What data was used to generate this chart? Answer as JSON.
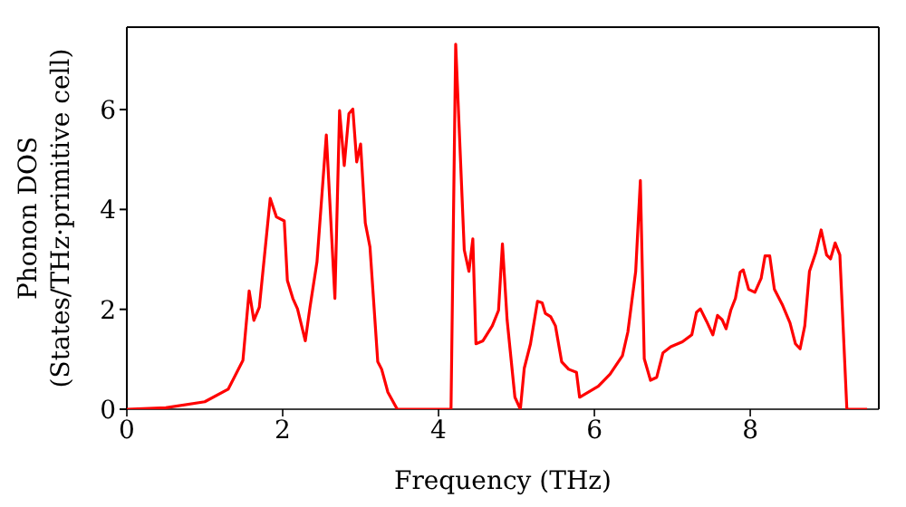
{
  "chart_data": {
    "type": "line",
    "xlabel": "Frequency (THz)",
    "ylabel": "Phonon DOS\n(States/THz·primitive cell)",
    "x": [
      0,
      0.5,
      1.0,
      1.3,
      1.49,
      1.57,
      1.63,
      1.7,
      1.84,
      1.92,
      2.02,
      2.06,
      2.13,
      2.19,
      2.29,
      2.35,
      2.44,
      2.56,
      2.67,
      2.73,
      2.79,
      2.85,
      2.9,
      2.95,
      3.0,
      3.06,
      3.12,
      3.22,
      3.27,
      3.35,
      3.47,
      4.16,
      4.22,
      4.33,
      4.39,
      4.44,
      4.48,
      4.57,
      4.69,
      4.77,
      4.82,
      4.88,
      4.98,
      5.05,
      5.1,
      5.18,
      5.27,
      5.33,
      5.37,
      5.44,
      5.5,
      5.58,
      5.67,
      5.77,
      5.81,
      6.05,
      6.2,
      6.36,
      6.43,
      6.49,
      6.53,
      6.59,
      6.64,
      6.72,
      6.8,
      6.88,
      6.98,
      7.13,
      7.25,
      7.31,
      7.36,
      7.44,
      7.52,
      7.58,
      7.64,
      7.69,
      7.75,
      7.81,
      7.87,
      7.91,
      7.98,
      8.06,
      8.14,
      8.19,
      8.25,
      8.31,
      8.41,
      8.51,
      8.58,
      8.64,
      8.7,
      8.76,
      8.84,
      8.91,
      8.98,
      9.03,
      9.09,
      9.15,
      9.24,
      9.5
    ],
    "series": [
      {
        "color": "#ff0000",
        "values": [
          0,
          0.03,
          0.15,
          0.4,
          0.98,
          2.37,
          1.78,
          2.04,
          4.22,
          3.85,
          3.77,
          2.58,
          2.22,
          2.01,
          1.37,
          2.04,
          2.95,
          5.49,
          2.22,
          5.98,
          4.88,
          5.92,
          6.01,
          4.95,
          5.31,
          3.73,
          3.25,
          0.95,
          0.8,
          0.34,
          0,
          0,
          7.31,
          3.19,
          2.76,
          3.41,
          1.31,
          1.37,
          1.67,
          1.98,
          3.31,
          1.79,
          0.24,
          0,
          0.82,
          1.31,
          2.16,
          2.13,
          1.92,
          1.85,
          1.67,
          0.95,
          0.8,
          0.74,
          0.24,
          0.46,
          0.7,
          1.07,
          1.55,
          2.28,
          2.76,
          4.58,
          1.01,
          0.58,
          0.64,
          1.13,
          1.25,
          1.35,
          1.49,
          1.94,
          2.01,
          1.76,
          1.49,
          1.88,
          1.79,
          1.61,
          1.98,
          2.22,
          2.74,
          2.79,
          2.4,
          2.34,
          2.62,
          3.07,
          3.07,
          2.4,
          2.1,
          1.73,
          1.31,
          1.21,
          1.67,
          2.76,
          3.13,
          3.59,
          3.09,
          3.01,
          3.33,
          3.09,
          0,
          0
        ]
      }
    ],
    "xlim": [
      0,
      9.65
    ],
    "ylim": [
      0,
      7.65
    ],
    "xticks": [
      0,
      2,
      4,
      6,
      8
    ],
    "yticks": [
      0,
      2,
      4,
      6
    ],
    "grid": false,
    "legend": false,
    "marker": "none",
    "line_style": "solid"
  }
}
